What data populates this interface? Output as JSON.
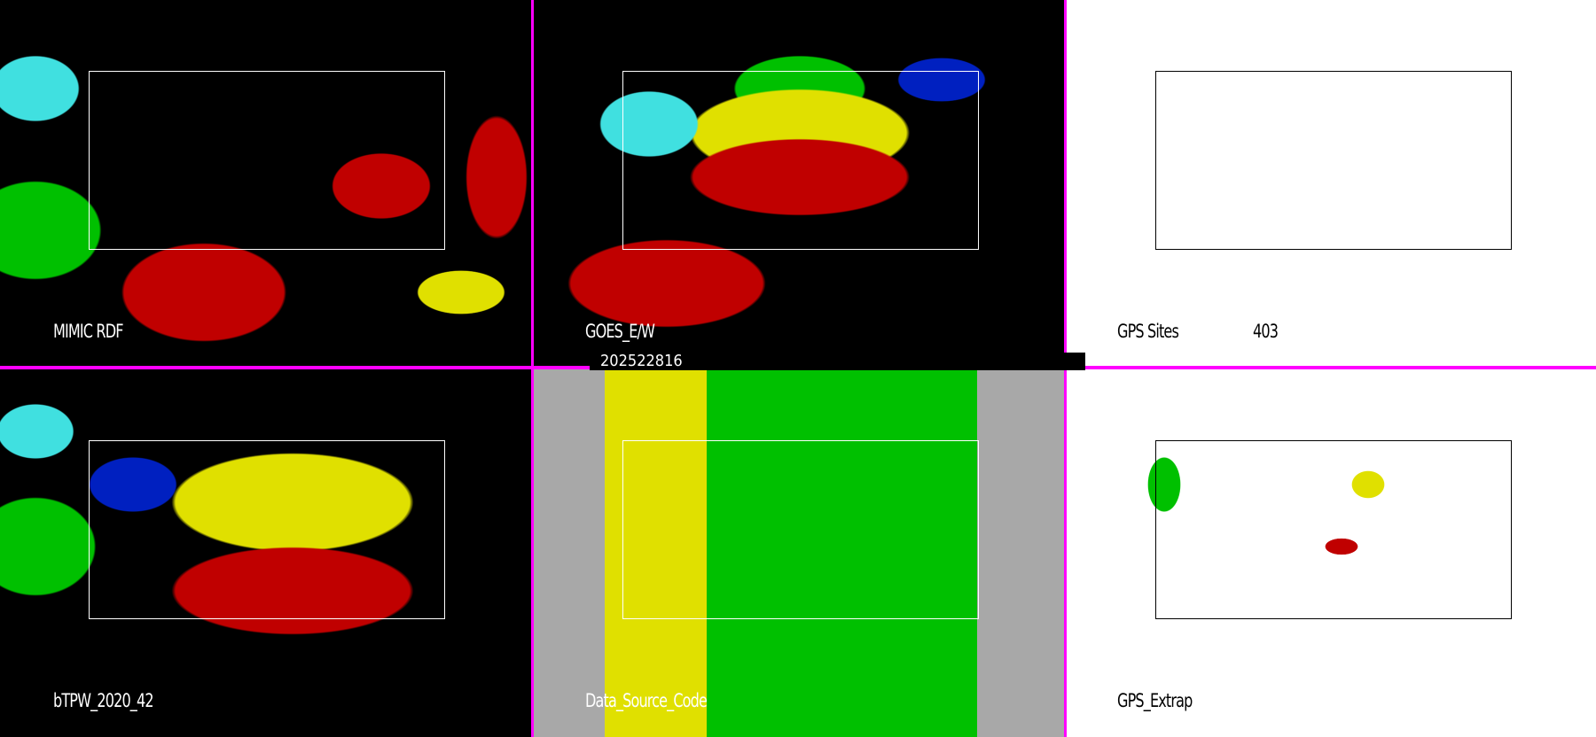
{
  "panels": [
    {
      "label": "MIMIC RDF"
    },
    {
      "label": "GOES_E/W"
    },
    {
      "label": "GPS Sites",
      "count": "403"
    },
    {
      "label": "bTPW_2020_42"
    },
    {
      "label": "Data_Source_Code"
    },
    {
      "label": "GPS_Extrap"
    }
  ],
  "timestamp": "202522816",
  "colors": {
    "separator": "#ff00ff",
    "red": "#c00000",
    "yellow": "#e0e000",
    "green": "#00c000",
    "cyan": "#40e0e0",
    "blue": "#0020c0",
    "gray": "#a8a8a8"
  }
}
